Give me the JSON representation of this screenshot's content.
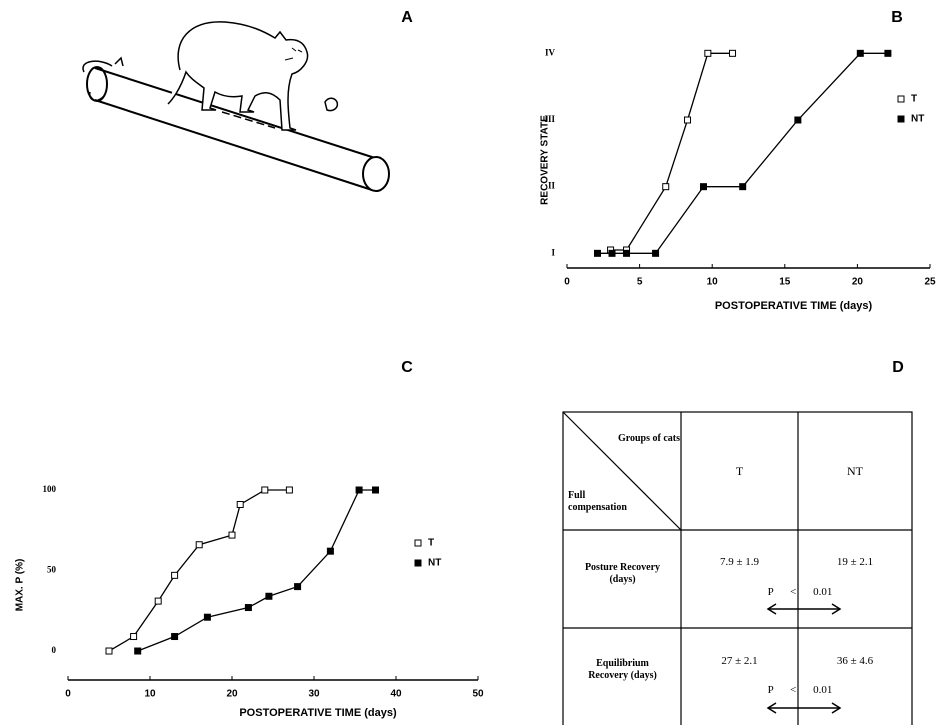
{
  "panel_labels": [
    "A",
    "B",
    "C",
    "D"
  ],
  "chart_data": [
    {
      "type": "line",
      "x_label": "POSTOPERATIVE TIME (days)",
      "y_label": "RECOVERY STATE",
      "xlim": [
        0,
        25
      ],
      "xticks": [
        0,
        5,
        10,
        15,
        20,
        25
      ],
      "ylim": [
        0.75,
        4.05
      ],
      "yticks": [
        {
          "value": 1,
          "label": "I"
        },
        {
          "value": 2,
          "label": "II"
        },
        {
          "value": 3,
          "label": "III"
        },
        {
          "value": 4,
          "label": "IV"
        }
      ],
      "legend": "upper right",
      "series": [
        {
          "name": "T",
          "color": "#000000",
          "marker": "open",
          "x": [
            3.0,
            4.1,
            6.8,
            8.3,
            9.7,
            11.4
          ],
          "values": [
            1.05,
            1.05,
            2,
            3,
            4,
            4
          ]
        },
        {
          "name": "NT",
          "color": "#000000",
          "marker": "filled",
          "x": [
            2.1,
            3.1,
            4.1,
            6.1,
            9.4,
            12.1,
            15.9,
            20.2,
            22.1
          ],
          "values": [
            1,
            1,
            1,
            1,
            2,
            2,
            3,
            4,
            4
          ]
        }
      ]
    },
    {
      "type": "line",
      "x_label": "POSTOPERATIVE TIME (days)",
      "y_label": "MAX. P (%)",
      "xlim": [
        0,
        50
      ],
      "xticks": [
        0,
        10,
        20,
        30,
        40,
        50
      ],
      "ylim": [
        -18,
        100
      ],
      "yticks": [
        0,
        50,
        100
      ],
      "legend": "right",
      "series": [
        {
          "name": "T",
          "color": "#000000",
          "marker": "open",
          "x": [
            5,
            8,
            11,
            13,
            16,
            20,
            21,
            24,
            27
          ],
          "values": [
            0,
            9,
            31,
            47,
            66,
            72,
            91,
            100,
            100
          ]
        },
        {
          "name": "NT",
          "color": "#000000",
          "marker": "filled",
          "x": [
            8.5,
            13,
            17,
            22,
            24.5,
            28,
            32,
            35.5,
            37.5
          ],
          "values": [
            0,
            9,
            21,
            27,
            34,
            40,
            62,
            100,
            100
          ]
        }
      ]
    }
  ],
  "table": {
    "corner_top": "Groups of cats",
    "corner_bottom": "Full compensation",
    "columns": [
      "T",
      "NT"
    ],
    "rows": [
      {
        "label": "Posture Recovery (days)",
        "cells": [
          "7.9 ± 1.9",
          "19 ± 2.1"
        ],
        "p": "P < 0.01"
      },
      {
        "label": "Equilibrium Recovery (days)",
        "cells": [
          "27 ± 2.1",
          "36 ± 4.6"
        ],
        "p": "P < 0.01"
      }
    ]
  }
}
